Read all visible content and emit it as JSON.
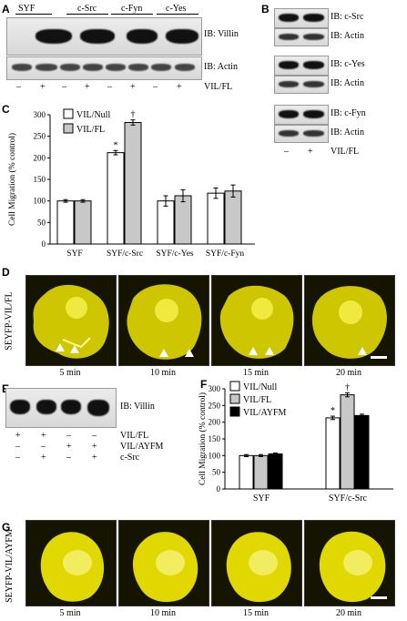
{
  "panelA": {
    "letter": "A",
    "cell_lines": [
      "SYF",
      "c-Src",
      "c-Fyn",
      "c-Yes"
    ],
    "blot_labels": [
      "IB: Villin",
      "IB: Actin"
    ],
    "lane_signs": [
      "–",
      "+",
      "–",
      "+",
      "–",
      "+",
      "–",
      "+"
    ],
    "row_label": "VIL/FL"
  },
  "panelB": {
    "letter": "B",
    "groups": [
      {
        "top": "IB: c-Src",
        "bottom": "IB: Actin"
      },
      {
        "top": "IB: c-Yes",
        "bottom": "IB: Actin"
      },
      {
        "top": "IB: c-Fyn",
        "bottom": "IB: Actin"
      }
    ],
    "lane_signs": [
      "–",
      "+"
    ],
    "row_label": "VIL/FL"
  },
  "panelC": {
    "letter": "C",
    "legend": [
      "VIL/Null",
      "VIL/FL"
    ],
    "sig_marks": [
      "*",
      "†"
    ]
  },
  "panelD": {
    "letter": "D",
    "side_label": "SEYFP-VIL/FL",
    "times": [
      "5 min",
      "10 min",
      "15 min",
      "20 min"
    ]
  },
  "panelE": {
    "letter": "E",
    "blot_label": "IB: Villin",
    "rows": [
      {
        "signs": [
          "+",
          "+",
          "–",
          "–"
        ],
        "label": "VIL/FL"
      },
      {
        "signs": [
          "–",
          "–",
          "+",
          "+"
        ],
        "label": "VIL/AYFM"
      },
      {
        "signs": [
          "–",
          "+",
          "–",
          "+"
        ],
        "label": "c-Src"
      }
    ]
  },
  "panelF": {
    "letter": "F",
    "legend": [
      "VIL/Null",
      "VIL/FL",
      "VIL/AYFM"
    ],
    "sig_marks": [
      "*",
      "†"
    ]
  },
  "panelG": {
    "letter": "G",
    "side_label": "SEYFP-VIL/AYFM",
    "times": [
      "5 min",
      "10 min",
      "15 min",
      "20 min"
    ]
  },
  "colors": {
    "fluorescence": "#e6e000",
    "bar_null": "#ffffff",
    "bar_fl": "#c8c8c8",
    "bar_ayfm": "#000000"
  },
  "chart_data": [
    {
      "type": "bar",
      "categories": [
        "SYF",
        "SYF/c-Src",
        "SYF/c-Yes",
        "SYF/c-Fyn"
      ],
      "series": [
        {
          "name": "VIL/Null",
          "values": [
            100,
            212,
            100,
            118
          ],
          "errors": [
            3,
            5,
            12,
            12
          ]
        },
        {
          "name": "VIL/FL",
          "values": [
            100,
            282,
            112,
            123
          ],
          "errors": [
            3,
            6,
            14,
            14
          ]
        }
      ],
      "ylabel": "Cell Migration (% control)",
      "ylim": [
        0,
        300
      ],
      "yticks": [
        0,
        50,
        100,
        150,
        200,
        250,
        300
      ],
      "annotations": [
        {
          "category": "SYF/c-Src",
          "series": "VIL/Null",
          "text": "*"
        },
        {
          "category": "SYF/c-Src",
          "series": "VIL/FL",
          "text": "†"
        }
      ]
    },
    {
      "type": "bar",
      "categories": [
        "SYF",
        "SYF/c-Src"
      ],
      "series": [
        {
          "name": "VIL/Null",
          "values": [
            100,
            213
          ],
          "errors": [
            3,
            5
          ]
        },
        {
          "name": "VIL/FL",
          "values": [
            100,
            282
          ],
          "errors": [
            3,
            6
          ]
        },
        {
          "name": "VIL/AYFM",
          "values": [
            105,
            220
          ],
          "errors": [
            3,
            4
          ]
        }
      ],
      "ylabel": "Cell Migration (% control)",
      "ylim": [
        0,
        300
      ],
      "yticks": [
        0,
        50,
        100,
        150,
        200,
        250,
        300
      ],
      "annotations": [
        {
          "category": "SYF/c-Src",
          "series": "VIL/Null",
          "text": "*"
        },
        {
          "category": "SYF/c-Src",
          "series": "VIL/FL",
          "text": "†"
        }
      ]
    }
  ]
}
